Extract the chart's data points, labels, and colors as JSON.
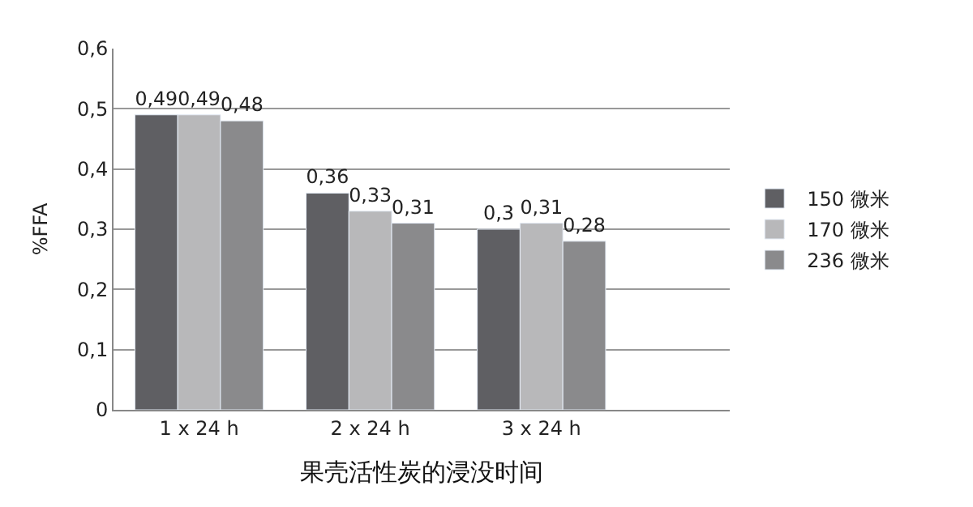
{
  "chart_data": {
    "type": "bar",
    "xlabel": "果壳活性炭的浸没时间",
    "ylabel": "%FFA",
    "categories": [
      "1 x 24 h",
      "2 x 24 h",
      "3 x 24 h"
    ],
    "series": [
      {
        "name": "150 微米",
        "color": "#5f5f63",
        "values": [
          0.49,
          0.36,
          0.3
        ],
        "value_labels": [
          "0,49",
          "0,36",
          "0,3"
        ]
      },
      {
        "name": "170 微米",
        "color": "#b8b8ba",
        "values": [
          0.49,
          0.33,
          0.31
        ],
        "value_labels": [
          "0,49",
          "0,33",
          "0,31"
        ]
      },
      {
        "name": "236 微米",
        "color": "#8a8a8c",
        "values": [
          0.48,
          0.31,
          0.28
        ],
        "value_labels": [
          "0,48",
          "0,31",
          "0,28"
        ]
      }
    ],
    "ylim": [
      0,
      0.6
    ],
    "yticks": [
      0,
      {
        "value": 0.1,
        "label": "0,1"
      },
      {
        "value": 0.2,
        "label": "0,2"
      },
      {
        "value": 0.3,
        "label": "0,3"
      },
      {
        "value": 0.4,
        "label": "0,4"
      },
      {
        "value": 0.5,
        "label": "0,5"
      },
      {
        "value": 0.6,
        "label": "0,6"
      }
    ],
    "grid": "y",
    "legend": "right"
  }
}
